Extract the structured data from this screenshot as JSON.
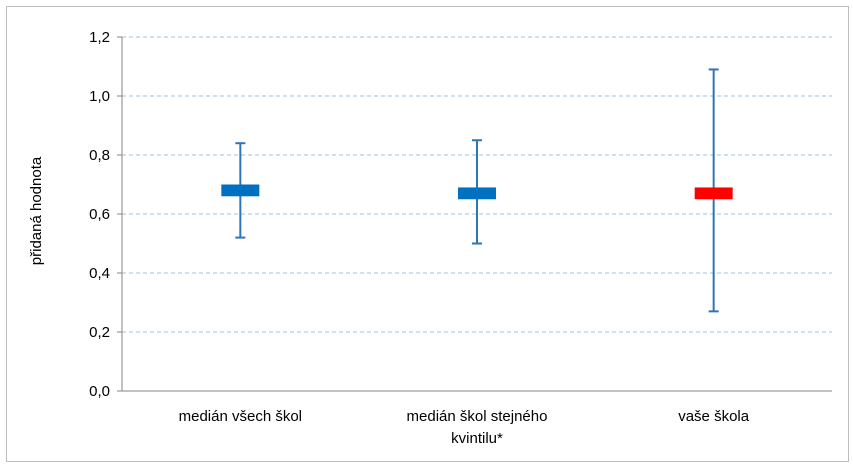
{
  "chart_data": {
    "type": "error-bar",
    "ylabel": "přidaná hodnota",
    "xlabel": "",
    "ylim": [
      0.0,
      1.2
    ],
    "yticks": [
      "0,0",
      "0,2",
      "0,4",
      "0,6",
      "0,8",
      "1,0",
      "1,2"
    ],
    "grid": true,
    "categories": [
      [
        "medián všech škol"
      ],
      [
        "medián škol stejného",
        "kvintilu*"
      ],
      [
        "vaše škola"
      ]
    ],
    "points": [
      {
        "box_low": 0.66,
        "box_high": 0.7,
        "whisker_low": 0.52,
        "whisker_high": 0.84,
        "color": "#0070c0"
      },
      {
        "box_low": 0.65,
        "box_high": 0.69,
        "whisker_low": 0.5,
        "whisker_high": 0.85,
        "color": "#0070c0"
      },
      {
        "box_low": 0.65,
        "box_high": 0.69,
        "whisker_low": 0.27,
        "whisker_high": 1.09,
        "color": "#ff0000"
      }
    ],
    "whisker_color": "#2e75b6",
    "grid_color": "#9dc3e6"
  }
}
